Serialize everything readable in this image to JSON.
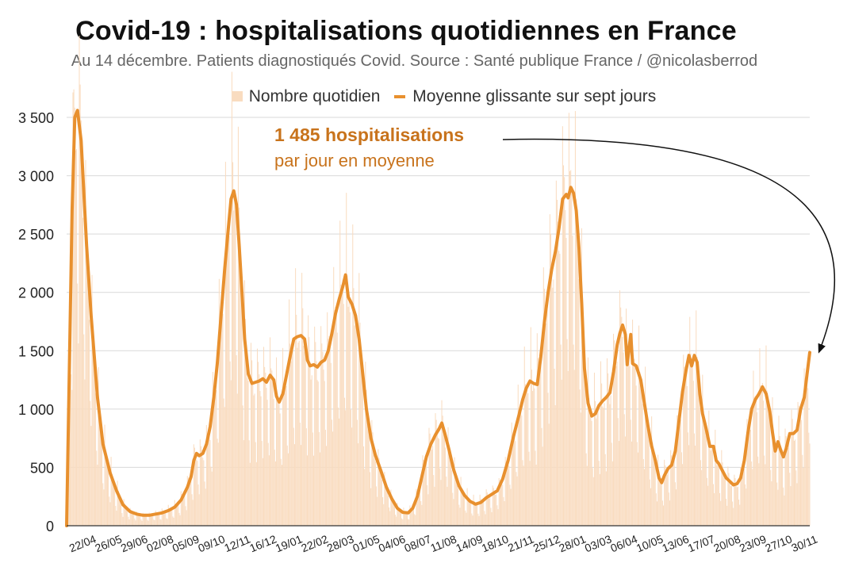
{
  "title": "Covid-19 : hospitalisations quotidiennes en France",
  "subtitle": "Au 14 décembre. Patients diagnostiqués Covid. Source : Santé publique France / @nicolasberrod",
  "legend": {
    "daily": "Nombre quotidien",
    "average": "Moyenne glissante sur sept jours"
  },
  "annotation": {
    "value_text": "1 485 hospitalisations",
    "detail_text": "par jour en moyenne"
  },
  "colors": {
    "bars": "#f9dcc0",
    "line": "#e8902e",
    "annotation": "#c8731c",
    "grid": "#d9d9d9",
    "arrow": "#111111"
  },
  "chart_data": {
    "type": "area",
    "title": "Covid-19 : hospitalisations quotidiennes en France",
    "xlabel": "",
    "ylabel": "",
    "ylim": [
      0,
      3500
    ],
    "yticks": [
      0,
      500,
      1000,
      1500,
      2000,
      2500,
      3000,
      3500
    ],
    "ytick_labels": [
      "0",
      "500",
      "1 000",
      "1 500",
      "2 000",
      "2 500",
      "3 000",
      "3 500"
    ],
    "xtick_labels": [
      "22/04",
      "26/05",
      "29/06",
      "02/08",
      "05/09",
      "09/10",
      "12/11",
      "16/12",
      "19/01",
      "22/02",
      "28/03",
      "01/05",
      "04/06",
      "08/07",
      "11/08",
      "14/09",
      "18/10",
      "21/11",
      "25/12",
      "28/01",
      "03/03",
      "06/04",
      "10/05",
      "13/06",
      "17/07",
      "20/08",
      "23/09",
      "27/10",
      "30/11"
    ],
    "grid": true,
    "series": [
      {
        "name": "Moyenne glissante sur sept jours",
        "points": [
          [
            0,
            0
          ],
          [
            6,
            2700
          ],
          [
            9,
            3500
          ],
          [
            12,
            3560
          ],
          [
            16,
            3300
          ],
          [
            22,
            2400
          ],
          [
            27,
            1800
          ],
          [
            34,
            1100
          ],
          [
            40,
            700
          ],
          [
            48,
            450
          ],
          [
            55,
            300
          ],
          [
            62,
            180
          ],
          [
            70,
            120
          ],
          [
            77,
            100
          ],
          [
            84,
            90
          ],
          [
            91,
            90
          ],
          [
            98,
            100
          ],
          [
            105,
            110
          ],
          [
            112,
            130
          ],
          [
            119,
            160
          ],
          [
            126,
            220
          ],
          [
            133,
            330
          ],
          [
            137,
            420
          ],
          [
            140,
            560
          ],
          [
            143,
            620
          ],
          [
            146,
            600
          ],
          [
            150,
            620
          ],
          [
            154,
            700
          ],
          [
            158,
            850
          ],
          [
            162,
            1100
          ],
          [
            166,
            1400
          ],
          [
            170,
            1800
          ],
          [
            174,
            2200
          ],
          [
            178,
            2550
          ],
          [
            181,
            2800
          ],
          [
            184,
            2870
          ],
          [
            187,
            2750
          ],
          [
            190,
            2400
          ],
          [
            193,
            2000
          ],
          [
            196,
            1600
          ],
          [
            200,
            1300
          ],
          [
            204,
            1220
          ],
          [
            208,
            1230
          ],
          [
            212,
            1240
          ],
          [
            216,
            1260
          ],
          [
            220,
            1230
          ],
          [
            224,
            1290
          ],
          [
            228,
            1250
          ],
          [
            231,
            1110
          ],
          [
            234,
            1060
          ],
          [
            238,
            1130
          ],
          [
            242,
            1290
          ],
          [
            246,
            1450
          ],
          [
            250,
            1600
          ],
          [
            254,
            1620
          ],
          [
            258,
            1630
          ],
          [
            262,
            1600
          ],
          [
            265,
            1420
          ],
          [
            268,
            1370
          ],
          [
            272,
            1380
          ],
          [
            276,
            1360
          ],
          [
            280,
            1400
          ],
          [
            284,
            1420
          ],
          [
            288,
            1500
          ],
          [
            292,
            1650
          ],
          [
            296,
            1820
          ],
          [
            300,
            1940
          ],
          [
            304,
            2050
          ],
          [
            307,
            2150
          ],
          [
            310,
            1960
          ],
          [
            314,
            1900
          ],
          [
            318,
            1800
          ],
          [
            322,
            1600
          ],
          [
            326,
            1300
          ],
          [
            330,
            1000
          ],
          [
            335,
            750
          ],
          [
            340,
            600
          ],
          [
            346,
            470
          ],
          [
            352,
            330
          ],
          [
            358,
            230
          ],
          [
            364,
            150
          ],
          [
            370,
            115
          ],
          [
            376,
            110
          ],
          [
            381,
            150
          ],
          [
            386,
            250
          ],
          [
            391,
            420
          ],
          [
            396,
            590
          ],
          [
            401,
            700
          ],
          [
            406,
            780
          ],
          [
            410,
            830
          ],
          [
            413,
            880
          ],
          [
            416,
            800
          ],
          [
            421,
            650
          ],
          [
            426,
            480
          ],
          [
            432,
            340
          ],
          [
            438,
            260
          ],
          [
            444,
            210
          ],
          [
            450,
            185
          ],
          [
            456,
            200
          ],
          [
            462,
            240
          ],
          [
            468,
            270
          ],
          [
            474,
            300
          ],
          [
            480,
            400
          ],
          [
            486,
            560
          ],
          [
            492,
            770
          ],
          [
            498,
            950
          ],
          [
            502,
            1080
          ],
          [
            506,
            1180
          ],
          [
            510,
            1240
          ],
          [
            514,
            1220
          ],
          [
            518,
            1210
          ],
          [
            522,
            1450
          ],
          [
            526,
            1750
          ],
          [
            530,
            2000
          ],
          [
            534,
            2200
          ],
          [
            538,
            2350
          ],
          [
            542,
            2550
          ],
          [
            546,
            2800
          ],
          [
            550,
            2840
          ],
          [
            552,
            2810
          ],
          [
            555,
            2900
          ],
          [
            558,
            2850
          ],
          [
            561,
            2700
          ],
          [
            564,
            2380
          ],
          [
            567,
            1900
          ],
          [
            570,
            1350
          ],
          [
            574,
            1050
          ],
          [
            578,
            940
          ],
          [
            582,
            960
          ],
          [
            586,
            1030
          ],
          [
            590,
            1070
          ],
          [
            594,
            1100
          ],
          [
            598,
            1140
          ],
          [
            602,
            1320
          ],
          [
            606,
            1550
          ],
          [
            609,
            1650
          ],
          [
            612,
            1720
          ],
          [
            615,
            1640
          ],
          [
            617,
            1380
          ],
          [
            619,
            1520
          ],
          [
            621,
            1640
          ],
          [
            623,
            1390
          ],
          [
            627,
            1370
          ],
          [
            632,
            1250
          ],
          [
            636,
            1050
          ],
          [
            640,
            850
          ],
          [
            644,
            680
          ],
          [
            648,
            560
          ],
          [
            652,
            410
          ],
          [
            655,
            370
          ],
          [
            658,
            430
          ],
          [
            662,
            490
          ],
          [
            666,
            520
          ],
          [
            670,
            640
          ],
          [
            674,
            900
          ],
          [
            678,
            1150
          ],
          [
            682,
            1340
          ],
          [
            685,
            1460
          ],
          [
            688,
            1370
          ],
          [
            691,
            1460
          ],
          [
            694,
            1400
          ],
          [
            697,
            1130
          ],
          [
            700,
            960
          ],
          [
            704,
            830
          ],
          [
            708,
            680
          ],
          [
            712,
            680
          ],
          [
            715,
            560
          ],
          [
            718,
            530
          ],
          [
            722,
            470
          ],
          [
            726,
            410
          ],
          [
            730,
            380
          ],
          [
            734,
            350
          ],
          [
            738,
            360
          ],
          [
            742,
            410
          ],
          [
            746,
            560
          ],
          [
            750,
            800
          ],
          [
            754,
            1000
          ],
          [
            758,
            1080
          ],
          [
            762,
            1130
          ],
          [
            766,
            1190
          ],
          [
            770,
            1130
          ],
          [
            774,
            980
          ],
          [
            777,
            800
          ],
          [
            780,
            640
          ],
          [
            783,
            720
          ],
          [
            786,
            650
          ],
          [
            789,
            590
          ],
          [
            792,
            660
          ],
          [
            796,
            790
          ],
          [
            800,
            790
          ],
          [
            804,
            820
          ],
          [
            808,
            1000
          ],
          [
            812,
            1100
          ],
          [
            815,
            1300
          ],
          [
            818,
            1485
          ]
        ]
      }
    ],
    "x_range_days": [
      0,
      818
    ],
    "annotation": {
      "value": 1485,
      "text": "1 485 hospitalisations par jour en moyenne"
    }
  }
}
